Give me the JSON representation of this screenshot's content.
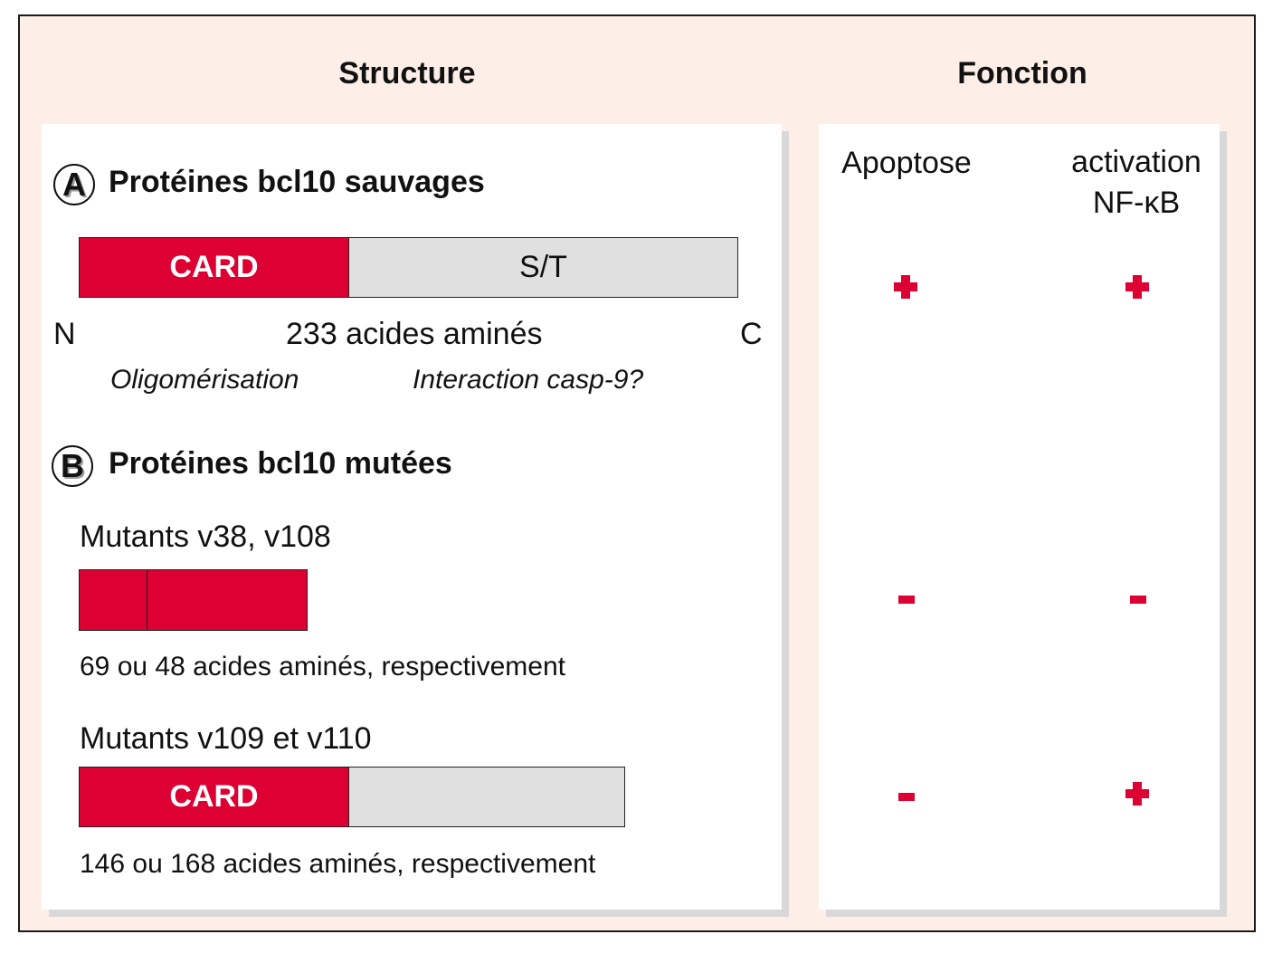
{
  "headers": {
    "structure": "Structure",
    "fonction": "Fonction"
  },
  "section_a": {
    "letter": "A",
    "title": "Protéines bcl10 sauvages",
    "bar": {
      "card_label": "CARD",
      "st_label": "S/T"
    },
    "n_label": "N",
    "length_label": "233 acides aminés",
    "c_label": "C",
    "domain_notes": [
      "Oligomérisation",
      "Interaction casp-9?"
    ]
  },
  "section_b": {
    "letter": "B",
    "title": "Protéines bcl10 mutées",
    "mutants": [
      {
        "name": "Mutants v38, v108",
        "length_label": "69 ou 48 acides aminés, respectivement"
      },
      {
        "name": "Mutants v109 et v110",
        "card_label": "CARD",
        "length_label": "146 ou 168 acides aminés, respectivement"
      }
    ]
  },
  "function_columns": {
    "apoptose": "Apoptose",
    "activation_line1": "activation",
    "activation_line2": "NF-κB"
  },
  "results": [
    {
      "row": "wild-type",
      "apoptose": "+",
      "nfkb": "+"
    },
    {
      "row": "v38-v108",
      "apoptose": "-",
      "nfkb": "-"
    },
    {
      "row": "v109-v110",
      "apoptose": "-",
      "nfkb": "+"
    }
  ],
  "colors": {
    "card_red": "#dc0033",
    "st_gray": "#e0e0e0",
    "background": "#fdeee8"
  }
}
